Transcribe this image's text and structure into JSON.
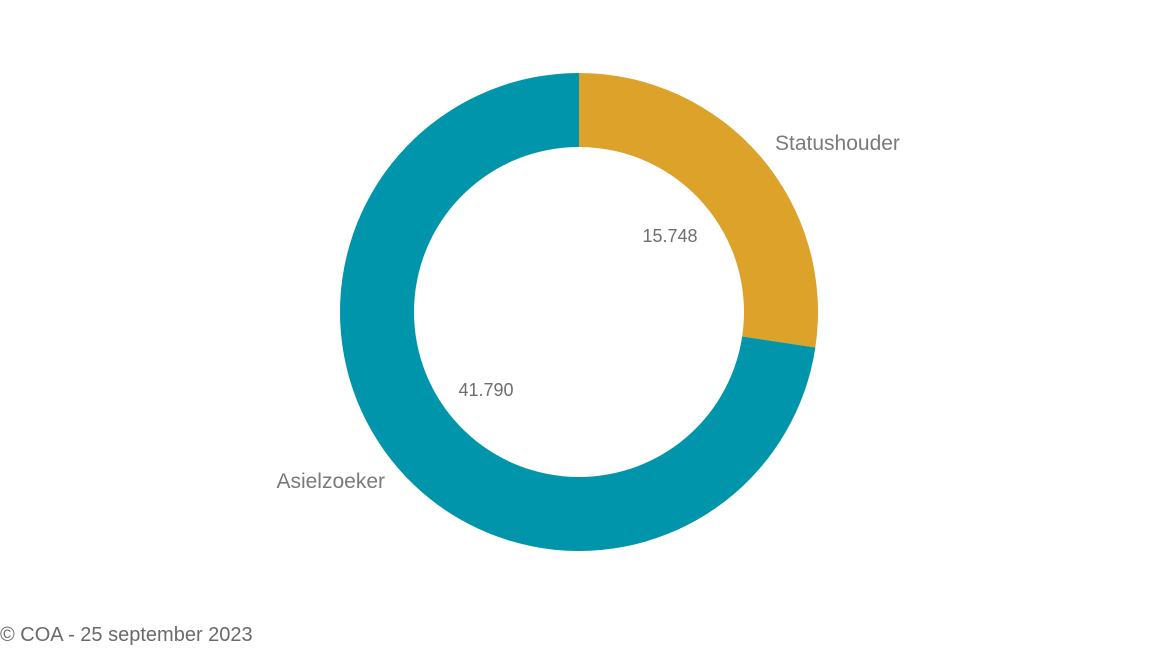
{
  "chart_data": {
    "type": "pie",
    "variant": "donut",
    "title": "",
    "categories": [
      "Statushouder",
      "Asielzoeker"
    ],
    "values": [
      15748,
      41790
    ],
    "value_labels": [
      "15.748",
      "41.790"
    ],
    "colors": [
      "#DCA22A",
      "#0095AB"
    ],
    "legend": "none"
  },
  "footer": {
    "text": "© COA - 25 september 2023"
  }
}
